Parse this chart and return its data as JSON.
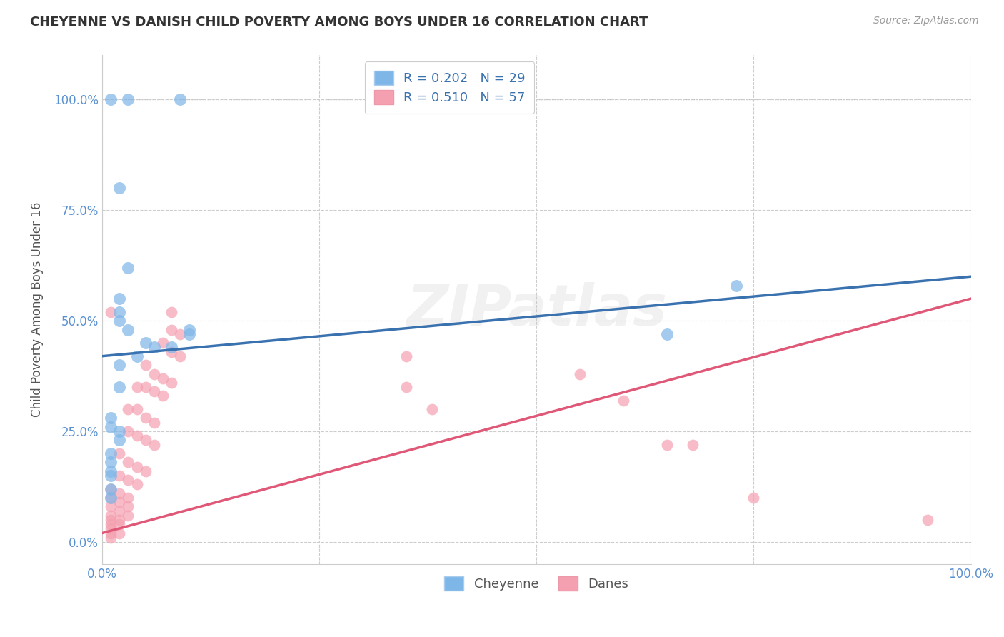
{
  "title": "CHEYENNE VS DANISH CHILD POVERTY AMONG BOYS UNDER 16 CORRELATION CHART",
  "source": "Source: ZipAtlas.com",
  "ylabel": "Child Poverty Among Boys Under 16",
  "watermark": "ZIPatlas",
  "xlim": [
    0,
    100
  ],
  "ylim": [
    -5,
    110
  ],
  "xtick_vals": [
    0,
    25,
    50,
    75,
    100
  ],
  "xtick_labels": [
    "0.0%",
    "",
    "",
    "",
    "100.0%"
  ],
  "ytick_vals": [
    0,
    25,
    50,
    75,
    100
  ],
  "ytick_labels": [
    "0.0%",
    "25.0%",
    "50.0%",
    "75.0%",
    "100.0%"
  ],
  "cheyenne_color": "#7EB6E8",
  "danes_color": "#F4A0B0",
  "cheyenne_line_color": "#3A72B0",
  "danes_line_color": "#E05878",
  "legend_label1": "R = 0.202   N = 29",
  "legend_label2": "R = 0.510   N = 57",
  "legend_color1": "#7EB6E8",
  "legend_color2": "#F4A0B0",
  "cheyenne_points": [
    [
      1,
      100
    ],
    [
      3,
      100
    ],
    [
      9,
      100
    ],
    [
      2,
      80
    ],
    [
      3,
      62
    ],
    [
      2,
      55
    ],
    [
      2,
      52
    ],
    [
      2,
      50
    ],
    [
      3,
      48
    ],
    [
      10,
      48
    ],
    [
      10,
      47
    ],
    [
      5,
      45
    ],
    [
      6,
      44
    ],
    [
      8,
      44
    ],
    [
      2,
      40
    ],
    [
      4,
      42
    ],
    [
      2,
      35
    ],
    [
      1,
      28
    ],
    [
      1,
      26
    ],
    [
      2,
      25
    ],
    [
      2,
      23
    ],
    [
      1,
      20
    ],
    [
      1,
      18
    ],
    [
      1,
      16
    ],
    [
      1,
      15
    ],
    [
      1,
      12
    ],
    [
      1,
      10
    ],
    [
      65,
      47
    ],
    [
      73,
      58
    ]
  ],
  "danes_points": [
    [
      1,
      52
    ],
    [
      8,
      52
    ],
    [
      8,
      48
    ],
    [
      9,
      47
    ],
    [
      7,
      45
    ],
    [
      8,
      43
    ],
    [
      9,
      42
    ],
    [
      5,
      40
    ],
    [
      6,
      38
    ],
    [
      7,
      37
    ],
    [
      8,
      36
    ],
    [
      4,
      35
    ],
    [
      5,
      35
    ],
    [
      6,
      34
    ],
    [
      7,
      33
    ],
    [
      3,
      30
    ],
    [
      4,
      30
    ],
    [
      5,
      28
    ],
    [
      6,
      27
    ],
    [
      3,
      25
    ],
    [
      4,
      24
    ],
    [
      5,
      23
    ],
    [
      6,
      22
    ],
    [
      2,
      20
    ],
    [
      3,
      18
    ],
    [
      4,
      17
    ],
    [
      5,
      16
    ],
    [
      2,
      15
    ],
    [
      3,
      14
    ],
    [
      4,
      13
    ],
    [
      1,
      12
    ],
    [
      2,
      11
    ],
    [
      3,
      10
    ],
    [
      1,
      10
    ],
    [
      2,
      9
    ],
    [
      3,
      8
    ],
    [
      1,
      8
    ],
    [
      2,
      7
    ],
    [
      3,
      6
    ],
    [
      1,
      6
    ],
    [
      2,
      5
    ],
    [
      1,
      5
    ],
    [
      1,
      4
    ],
    [
      2,
      4
    ],
    [
      1,
      3
    ],
    [
      1,
      2
    ],
    [
      2,
      2
    ],
    [
      1,
      1
    ],
    [
      35,
      42
    ],
    [
      35,
      35
    ],
    [
      38,
      30
    ],
    [
      55,
      38
    ],
    [
      60,
      32
    ],
    [
      65,
      22
    ],
    [
      68,
      22
    ],
    [
      75,
      10
    ],
    [
      95,
      5
    ]
  ]
}
